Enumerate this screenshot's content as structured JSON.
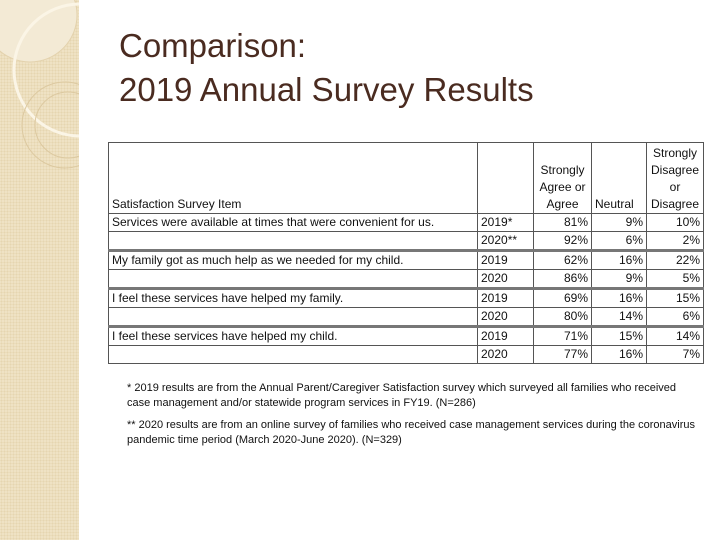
{
  "title": {
    "line1": "Comparison:",
    "line2": "2019 Annual Survey Results"
  },
  "table": {
    "headers": [
      "Satisfaction Survey Item",
      "",
      "Strongly Agree or Agree",
      "Neutral",
      "Strongly Disagree or Disagree"
    ],
    "rows": [
      {
        "item": "Services were available at times that were convenient for us.",
        "year": "2019*",
        "agree": "81%",
        "neutral": "9%",
        "disagree": "10%"
      },
      {
        "item": "",
        "year": "2020**",
        "agree": "92%",
        "neutral": "6%",
        "disagree": "2%"
      },
      {
        "item": "My family got as much help as we needed for my child.",
        "year": "2019",
        "agree": "62%",
        "neutral": "16%",
        "disagree": "22%"
      },
      {
        "item": "",
        "year": "2020",
        "agree": "86%",
        "neutral": "9%",
        "disagree": "5%"
      },
      {
        "item": "I feel these services have helped my family.",
        "year": "2019",
        "agree": "69%",
        "neutral": "16%",
        "disagree": "15%"
      },
      {
        "item": "",
        "year": "2020",
        "agree": "80%",
        "neutral": "14%",
        "disagree": "6%"
      },
      {
        "item": "I feel these services have helped my child.",
        "year": "2019",
        "agree": "71%",
        "neutral": "15%",
        "disagree": "14%"
      },
      {
        "item": "",
        "year": "2020",
        "agree": "77%",
        "neutral": "16%",
        "disagree": "7%"
      }
    ]
  },
  "notes": [
    "* 2019 results are from the Annual Parent/Caregiver Satisfaction survey which surveyed all families who received case management and/or statewide program services in FY19.  (N=286)",
    "** 2020 results are from an online survey of families who received case management services during the coronavirus pandemic time period (March 2020-June 2020).  (N=329)"
  ]
}
